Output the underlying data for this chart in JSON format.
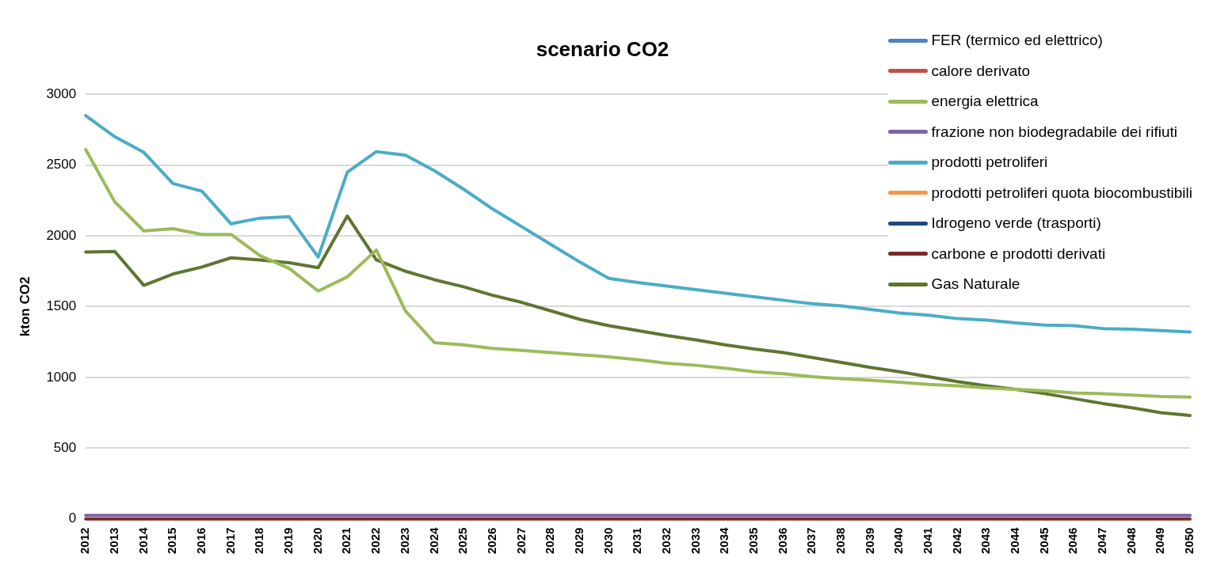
{
  "chart_data": {
    "type": "line",
    "title": "scenario CO2",
    "ylabel": "kton CO2",
    "categories": [
      "2012",
      "2013",
      "2014",
      "2015",
      "2016",
      "2017",
      "2018",
      "2019",
      "2020",
      "2021",
      "2022",
      "2023",
      "2024",
      "2025",
      "2026",
      "2027",
      "2028",
      "2029",
      "2030",
      "2031",
      "2032",
      "2033",
      "2034",
      "2035",
      "2036",
      "2037",
      "2038",
      "2039",
      "2040",
      "2041",
      "2042",
      "2043",
      "2044",
      "2045",
      "2046",
      "2047",
      "2048",
      "2049",
      "2050"
    ],
    "series": [
      {
        "name": "FER (termico ed elettrico)",
        "color": "#4f81bd",
        "values": [
          null,
          null,
          null,
          null,
          null,
          null,
          null,
          null,
          null,
          null,
          null,
          null,
          null,
          null,
          null,
          null,
          null,
          null,
          null,
          null,
          null,
          null,
          null,
          null,
          null,
          null,
          null,
          null,
          null,
          null,
          null,
          null,
          null,
          null,
          null,
          null,
          null,
          null,
          null
        ]
      },
      {
        "name": "calore derivato",
        "color": "#c0504d",
        "values": [
          null,
          null,
          null,
          null,
          null,
          null,
          null,
          null,
          null,
          null,
          null,
          null,
          null,
          null,
          null,
          null,
          null,
          null,
          null,
          null,
          null,
          null,
          null,
          null,
          null,
          null,
          null,
          null,
          null,
          null,
          null,
          null,
          null,
          null,
          null,
          null,
          null,
          null,
          null
        ]
      },
      {
        "name": "energia elettrica",
        "color": "#9bbb59",
        "values": [
          2610,
          2240,
          2035,
          2050,
          2010,
          2010,
          1860,
          1770,
          1610,
          1710,
          1900,
          1470,
          1245,
          1230,
          1205,
          1190,
          1175,
          1160,
          1145,
          1125,
          1100,
          1085,
          1065,
          1040,
          1025,
          1005,
          990,
          980,
          965,
          950,
          940,
          925,
          915,
          905,
          890,
          885,
          875,
          865,
          860
        ]
      },
      {
        "name": "frazione non biodegradabile dei rifiuti",
        "color": "#8064a2",
        "values": [
          25,
          25,
          25,
          25,
          25,
          25,
          25,
          25,
          25,
          25,
          25,
          25,
          25,
          25,
          25,
          25,
          25,
          25,
          25,
          25,
          25,
          25,
          25,
          25,
          25,
          25,
          25,
          25,
          25,
          25,
          25,
          25,
          25,
          25,
          25,
          25,
          25,
          25,
          25
        ]
      },
      {
        "name": "prodotti petroliferi",
        "color": "#4bacc6",
        "values": [
          2850,
          2700,
          2590,
          2370,
          2315,
          2085,
          2125,
          2135,
          1850,
          2450,
          2595,
          2570,
          2460,
          2330,
          2190,
          2065,
          1940,
          1815,
          1700,
          1670,
          1645,
          1620,
          1595,
          1570,
          1545,
          1520,
          1505,
          1480,
          1455,
          1440,
          1415,
          1405,
          1385,
          1370,
          1365,
          1345,
          1340,
          1330,
          1320
        ]
      },
      {
        "name": "prodotti petroliferi quota biocombustibili",
        "color": "#f79646",
        "values": [
          null,
          null,
          null,
          null,
          null,
          null,
          null,
          null,
          null,
          null,
          null,
          null,
          null,
          null,
          null,
          null,
          null,
          null,
          null,
          null,
          null,
          null,
          null,
          null,
          null,
          null,
          null,
          null,
          null,
          null,
          null,
          null,
          null,
          null,
          null,
          null,
          null,
          null,
          null
        ]
      },
      {
        "name": "Idrogeno verde (trasporti)",
        "color": "#1f497d",
        "values": [
          null,
          null,
          null,
          null,
          null,
          null,
          null,
          null,
          null,
          null,
          null,
          null,
          null,
          null,
          null,
          null,
          null,
          null,
          null,
          null,
          null,
          null,
          null,
          null,
          null,
          null,
          null,
          null,
          null,
          null,
          null,
          null,
          null,
          null,
          null,
          null,
          null,
          null,
          null
        ]
      },
      {
        "name": "carbone e prodotti derivati",
        "color": "#772c2a",
        "values": [
          0,
          0,
          0,
          0,
          0,
          0,
          0,
          0,
          0,
          0,
          0,
          0,
          0,
          0,
          0,
          0,
          0,
          0,
          0,
          0,
          0,
          0,
          0,
          0,
          0,
          0,
          0,
          0,
          0,
          0,
          0,
          0,
          0,
          0,
          0,
          0,
          0,
          0,
          0
        ]
      },
      {
        "name": "Gas Naturale",
        "color": "#5f7530",
        "values": [
          1885,
          1890,
          1650,
          1730,
          1780,
          1845,
          1830,
          1810,
          1775,
          2140,
          1830,
          1750,
          1690,
          1640,
          1580,
          1530,
          1470,
          1410,
          1365,
          1330,
          1295,
          1265,
          1230,
          1200,
          1175,
          1140,
          1105,
          1070,
          1040,
          1005,
          970,
          940,
          915,
          885,
          850,
          815,
          785,
          750,
          730
        ]
      }
    ],
    "ylim": [
      0,
      3000
    ],
    "yticks": [
      0,
      500,
      1000,
      1500,
      2000,
      2500,
      3000
    ],
    "grid": "y",
    "legend": "top right",
    "marker": "none",
    "line_style": "solid"
  }
}
